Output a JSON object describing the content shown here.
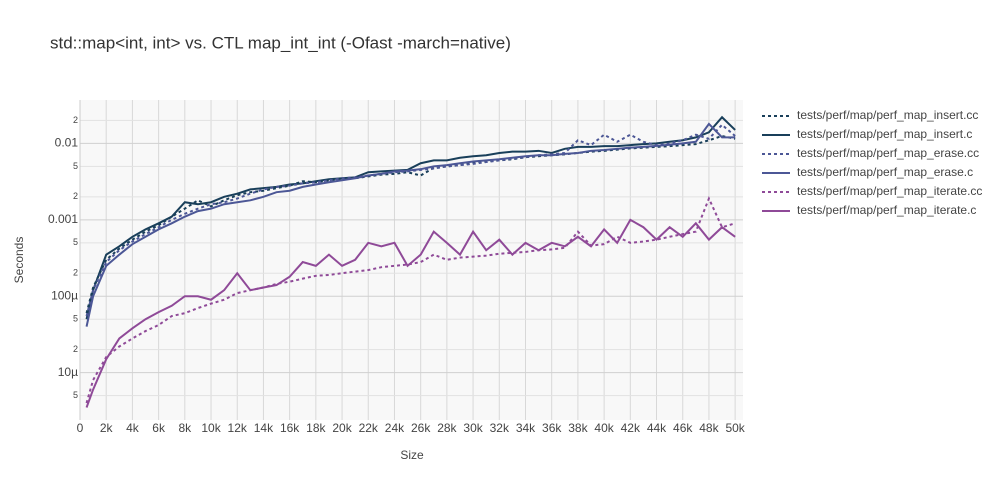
{
  "chart_data": {
    "type": "line",
    "title": "std::map<int, int> vs. CTL map_int_int (-Ofast -march=native)",
    "x_label": "Size",
    "y_label": "Seconds",
    "log_y": true,
    "grid": true,
    "xlim": [
      0,
      50600
    ],
    "ylim": [
      2.4e-06,
      0.037
    ],
    "xticks": [
      0,
      {
        "value": 2000,
        "label": "2k"
      },
      {
        "value": 4000,
        "label": "4k"
      },
      {
        "value": 6000,
        "label": "6k"
      },
      {
        "value": 8000,
        "label": "8k"
      },
      {
        "value": 10000,
        "label": "10k"
      },
      {
        "value": 12000,
        "label": "12k"
      },
      {
        "value": 14000,
        "label": "14k"
      },
      {
        "value": 16000,
        "label": "16k"
      },
      {
        "value": 18000,
        "label": "18k"
      },
      {
        "value": 20000,
        "label": "20k"
      },
      {
        "value": 22000,
        "label": "22k"
      },
      {
        "value": 24000,
        "label": "24k"
      },
      {
        "value": 26000,
        "label": "26k"
      },
      {
        "value": 28000,
        "label": "28k"
      },
      {
        "value": 30000,
        "label": "30k"
      },
      {
        "value": 32000,
        "label": "32k"
      },
      {
        "value": 34000,
        "label": "34k"
      },
      {
        "value": 36000,
        "label": "36k"
      },
      {
        "value": 38000,
        "label": "38k"
      },
      {
        "value": 40000,
        "label": "40k"
      },
      {
        "value": 42000,
        "label": "42k"
      },
      {
        "value": 44000,
        "label": "44k"
      },
      {
        "value": 46000,
        "label": "46k"
      },
      {
        "value": 48000,
        "label": "48k"
      },
      {
        "value": 50000,
        "label": "50k"
      }
    ],
    "yticks": [
      {
        "value": 5e-06,
        "label": "5"
      },
      {
        "value": 1e-05,
        "label": "10µ"
      },
      {
        "value": 2e-05,
        "label": "2"
      },
      {
        "value": 5e-05,
        "label": "5"
      },
      {
        "value": 0.0001,
        "label": "100µ"
      },
      {
        "value": 0.0002,
        "label": "2"
      },
      {
        "value": 0.0005,
        "label": "5"
      },
      0.001,
      {
        "value": 0.002,
        "label": "2"
      },
      {
        "value": 0.005,
        "label": "5"
      },
      0.01,
      {
        "value": 0.02,
        "label": "2"
      }
    ],
    "x": [
      500,
      1000,
      2000,
      3000,
      4000,
      5000,
      6000,
      7000,
      8000,
      9000,
      10000,
      11000,
      12000,
      13000,
      14000,
      15000,
      16000,
      17000,
      18000,
      19000,
      20000,
      21000,
      22000,
      23000,
      24000,
      25000,
      26000,
      27000,
      28000,
      29000,
      30000,
      31000,
      32000,
      33000,
      34000,
      35000,
      36000,
      37000,
      38000,
      39000,
      40000,
      41000,
      42000,
      43000,
      44000,
      45000,
      46000,
      47000,
      48000,
      49000,
      50000
    ],
    "series": [
      {
        "name": "tests/perf/map/perf_map_insert.cc",
        "color": "#193f5a",
        "dash": true,
        "values": [
          6e-05,
          0.00013,
          0.0003,
          0.00042,
          0.00055,
          0.0007,
          0.00085,
          0.0011,
          0.0014,
          0.0018,
          0.0015,
          0.0018,
          0.0021,
          0.0023,
          0.0024,
          0.0026,
          0.0028,
          0.0032,
          0.0031,
          0.0033,
          0.0034,
          0.0035,
          0.0037,
          0.0039,
          0.004,
          0.0042,
          0.0038,
          0.0048,
          0.005,
          0.0052,
          0.0056,
          0.0058,
          0.006,
          0.0062,
          0.0066,
          0.0068,
          0.007,
          0.0072,
          0.0075,
          0.0078,
          0.008,
          0.0083,
          0.0086,
          0.0088,
          0.009,
          0.0092,
          0.0095,
          0.0098,
          0.011,
          0.0125,
          0.0115
        ]
      },
      {
        "name": "tests/perf/map/perf_map_insert.c",
        "color": "#193f5a",
        "dash": false,
        "values": [
          5e-05,
          0.00012,
          0.00035,
          0.00045,
          0.0006,
          0.00075,
          0.0009,
          0.0011,
          0.0017,
          0.0016,
          0.0017,
          0.002,
          0.0022,
          0.0025,
          0.0026,
          0.0027,
          0.0029,
          0.003,
          0.0032,
          0.0034,
          0.0035,
          0.0036,
          0.0042,
          0.0043,
          0.0044,
          0.0045,
          0.0055,
          0.006,
          0.006,
          0.0065,
          0.0068,
          0.007,
          0.0075,
          0.0078,
          0.0078,
          0.008,
          0.0075,
          0.0085,
          0.009,
          0.009,
          0.0092,
          0.0092,
          0.0095,
          0.0098,
          0.01,
          0.0105,
          0.011,
          0.012,
          0.014,
          0.022,
          0.015
        ]
      },
      {
        "name": "tests/perf/map/perf_map_erase.cc",
        "color": "#4c5796",
        "dash": true,
        "values": [
          5.5e-05,
          0.00012,
          0.00028,
          0.0004,
          0.00052,
          0.00065,
          0.0008,
          0.001,
          0.0012,
          0.0014,
          0.0016,
          0.0017,
          0.0019,
          0.0022,
          0.0025,
          0.0027,
          0.0028,
          0.003,
          0.0031,
          0.0033,
          0.0035,
          0.0036,
          0.0038,
          0.004,
          0.0042,
          0.0043,
          0.0045,
          0.0047,
          0.005,
          0.0052,
          0.0054,
          0.0057,
          0.006,
          0.0063,
          0.0066,
          0.007,
          0.0072,
          0.0075,
          0.011,
          0.0095,
          0.013,
          0.0105,
          0.013,
          0.0105,
          0.0095,
          0.01,
          0.011,
          0.013,
          0.0115,
          0.0175,
          0.0125
        ]
      },
      {
        "name": "tests/perf/map/perf_map_erase.c",
        "color": "#4c5796",
        "dash": false,
        "values": [
          4e-05,
          0.0001,
          0.00025,
          0.00035,
          0.00048,
          0.0006,
          0.00075,
          0.0009,
          0.0011,
          0.0013,
          0.0014,
          0.0016,
          0.0017,
          0.0018,
          0.002,
          0.0023,
          0.0024,
          0.0027,
          0.0029,
          0.0031,
          0.0033,
          0.0035,
          0.0038,
          0.004,
          0.0043,
          0.0044,
          0.0046,
          0.005,
          0.0052,
          0.0055,
          0.0058,
          0.006,
          0.0062,
          0.0065,
          0.0068,
          0.007,
          0.007,
          0.0073,
          0.0075,
          0.008,
          0.0082,
          0.0085,
          0.0088,
          0.009,
          0.0093,
          0.0096,
          0.01,
          0.0105,
          0.018,
          0.012,
          0.012
        ]
      },
      {
        "name": "tests/perf/map/perf_map_iterate.cc",
        "color": "#8f4a98",
        "dash": true,
        "values": [
          4e-06,
          8e-06,
          1.6e-05,
          2.2e-05,
          2.8e-05,
          3.5e-05,
          4.2e-05,
          5.5e-05,
          6e-05,
          7e-05,
          8e-05,
          9e-05,
          0.00011,
          0.00012,
          0.00013,
          0.000145,
          0.000155,
          0.00017,
          0.000185,
          0.00019,
          0.0002,
          0.00021,
          0.00022,
          0.00024,
          0.00025,
          0.00026,
          0.00028,
          0.00035,
          0.0003,
          0.00032,
          0.00033,
          0.00034,
          0.00036,
          0.00037,
          0.00038,
          0.0004,
          0.00041,
          0.00043,
          0.0007,
          0.00046,
          0.00048,
          0.0006,
          0.0005,
          0.00052,
          0.00055,
          0.0006,
          0.00065,
          0.0007,
          0.0019,
          0.0008,
          0.0009
        ]
      },
      {
        "name": "tests/perf/map/perf_map_iterate.c",
        "color": "#8f4a98",
        "dash": false,
        "values": [
          3.5e-06,
          6e-06,
          1.5e-05,
          2.8e-05,
          3.8e-05,
          5e-05,
          6.2e-05,
          7.5e-05,
          0.0001,
          0.0001,
          9e-05,
          0.00012,
          0.0002,
          0.00012,
          0.00013,
          0.00014,
          0.00018,
          0.00028,
          0.00025,
          0.00035,
          0.00025,
          0.0003,
          0.0005,
          0.00045,
          0.0005,
          0.00025,
          0.00035,
          0.0007,
          0.0005,
          0.00035,
          0.0007,
          0.0004,
          0.00055,
          0.00035,
          0.0005,
          0.0004,
          0.0005,
          0.00045,
          0.0006,
          0.00045,
          0.00075,
          0.0005,
          0.001,
          0.0008,
          0.00055,
          0.0008,
          0.0006,
          0.0009,
          0.00055,
          0.0008,
          0.0006
        ]
      }
    ]
  }
}
